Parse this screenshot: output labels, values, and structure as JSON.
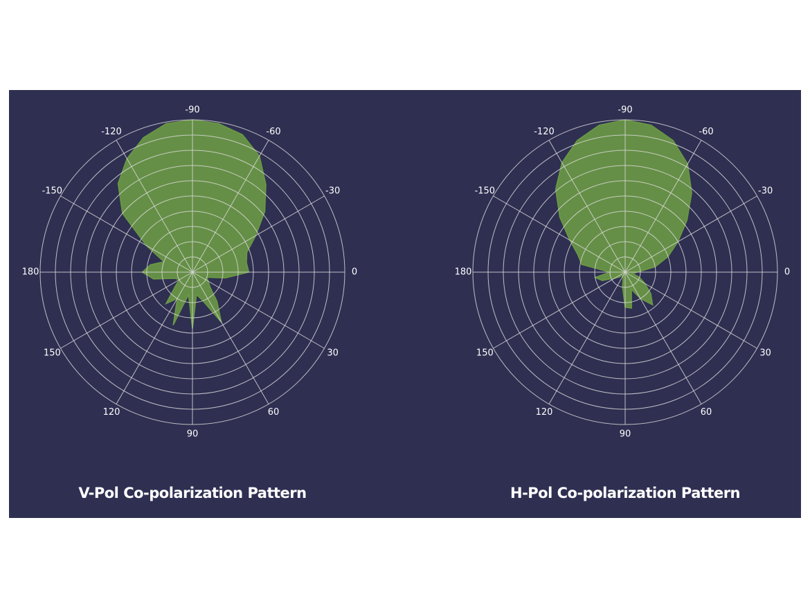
{
  "chart_data": [
    {
      "type": "polar",
      "title": "V-Pol Co-polarization Pattern",
      "color": "#6b9a45",
      "theta": [
        -180,
        -170,
        -160,
        -150,
        -140,
        -130,
        -120,
        -110,
        -100,
        -90,
        -80,
        -70,
        -60,
        -50,
        -40,
        -30,
        -20,
        -10,
        0,
        10,
        20,
        30,
        40,
        50,
        60,
        70,
        80,
        90,
        100,
        110,
        120,
        130,
        140,
        150,
        160,
        170
      ],
      "r": [
        3.3,
        2.8,
        2.0,
        3.5,
        6.0,
        7.6,
        8.6,
        9.4,
        9.9,
        10,
        9.9,
        9.6,
        8.8,
        7.5,
        6.2,
        4.8,
        3.8,
        3.6,
        3.7,
        2.2,
        1.0,
        1.2,
        1.5,
        2.5,
        3.8,
        2.0,
        1.5,
        3.7,
        1.5,
        3.7,
        2.0,
        2.7,
        1.5,
        1.0,
        1.2,
        2.6
      ],
      "rlim": [
        0,
        10
      ],
      "rticks": [
        1,
        2,
        3,
        4,
        5,
        6,
        7,
        8,
        9,
        10
      ],
      "thetaticks": [
        -90,
        -60,
        -30,
        0,
        30,
        60,
        90,
        120,
        150,
        180,
        -150,
        -120
      ]
    },
    {
      "type": "polar",
      "title": "H-Pol Co-polarization Pattern",
      "color": "#6b9a45",
      "theta": [
        -180,
        -170,
        -160,
        -150,
        -140,
        -130,
        -120,
        -110,
        -100,
        -90,
        -80,
        -70,
        -60,
        -50,
        -40,
        -30,
        -20,
        -10,
        0,
        10,
        20,
        30,
        40,
        50,
        60,
        70,
        80,
        90,
        100,
        110,
        120,
        130,
        140,
        150,
        160,
        170
      ],
      "r": [
        1.0,
        2.9,
        3.3,
        4.2,
        5.6,
        7.1,
        8.3,
        9.2,
        9.8,
        10,
        9.8,
        9.2,
        8.2,
        6.8,
        5.3,
        4.0,
        3.0,
        2.0,
        0.8,
        0.5,
        1.0,
        1.5,
        2.2,
        2.8,
        2.0,
        1.2,
        2.4,
        2.3,
        1.0,
        0.4,
        0.3,
        0.3,
        0.5,
        0.8,
        1.6,
        2.0
      ],
      "rlim": [
        0,
        10
      ],
      "rticks": [
        1,
        2,
        3,
        4,
        5,
        6,
        7,
        8,
        9,
        10
      ],
      "thetaticks": [
        -90,
        -60,
        -30,
        0,
        30,
        60,
        90,
        120,
        150,
        180,
        -150,
        -120
      ]
    }
  ]
}
